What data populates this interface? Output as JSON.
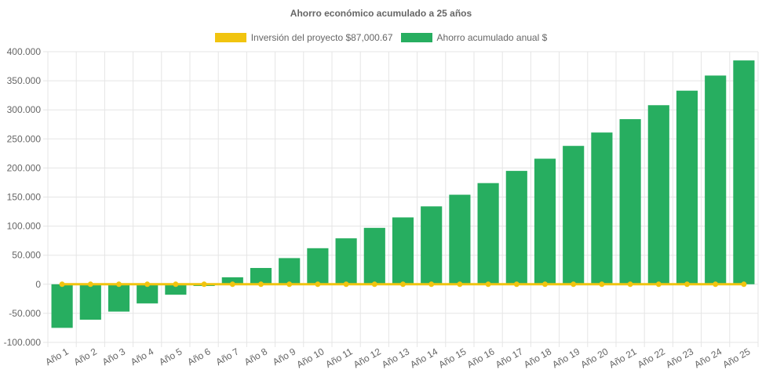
{
  "chart_data": {
    "type": "bar",
    "title": "Ahorro económico acumulado a 25 años",
    "xlabel": "",
    "ylabel": "",
    "ylim": [
      -100000,
      400000
    ],
    "yticks": [
      "400.000",
      "350.000",
      "300.000",
      "250.000",
      "200.000",
      "150.000",
      "100.000",
      "50.000",
      "0",
      "-50.000",
      "-100.000"
    ],
    "categories": [
      "Año 1",
      "Año 2",
      "Año 3",
      "Año 4",
      "Año 5",
      "Año 6",
      "Año 7",
      "Año 8",
      "Año 9",
      "Año 10",
      "Año 11",
      "Año 12",
      "Año 13",
      "Año 14",
      "Año 15",
      "Año 16",
      "Año 17",
      "Año 18",
      "Año 19",
      "Año 20",
      "Año 21",
      "Año 22",
      "Año 23",
      "Año 24",
      "Año 25"
    ],
    "series": [
      {
        "name": "Inversión del proyecto $87,000.67",
        "type": "line",
        "color": "#f1c40f",
        "values": [
          0,
          0,
          0,
          0,
          0,
          0,
          0,
          0,
          0,
          0,
          0,
          0,
          0,
          0,
          0,
          0,
          0,
          0,
          0,
          0,
          0,
          0,
          0,
          0,
          0
        ]
      },
      {
        "name": "Ahorro acumulado anual $",
        "type": "bar",
        "color": "#27ae60",
        "values": [
          -75000,
          -61000,
          -47000,
          -33000,
          -18000,
          -3000,
          12000,
          28000,
          45000,
          62000,
          79000,
          97000,
          115000,
          134000,
          154000,
          174000,
          195000,
          216000,
          238000,
          261000,
          284000,
          308000,
          333000,
          359000,
          385000
        ]
      }
    ],
    "grid": true,
    "legend": "top-center"
  }
}
